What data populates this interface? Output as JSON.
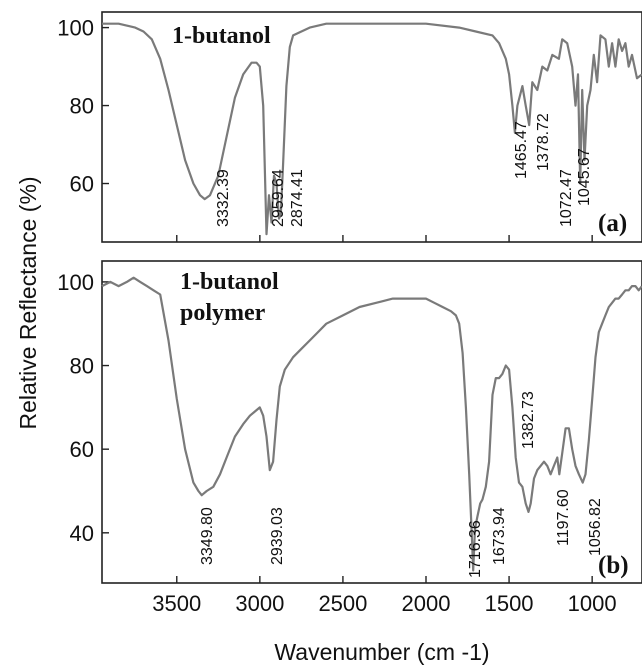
{
  "figure": {
    "ylabel": "Relative Reflectance (%)",
    "xlabel": "Wavenumber (cm -1)"
  },
  "chart_data": [
    {
      "type": "line",
      "title": "1-butanol",
      "panel_label": "(a)",
      "xlim": [
        3950,
        700
      ],
      "ylim": [
        45,
        104
      ],
      "x_ticks": [
        3500,
        3000,
        2500,
        2000,
        1500,
        1000
      ],
      "y_ticks": [
        60,
        80,
        100
      ],
      "grid": false,
      "line_color": "#7a7a7a",
      "series": [
        {
          "x": [
            3950,
            3850,
            3750,
            3700,
            3650,
            3600,
            3550,
            3500,
            3450,
            3400,
            3360,
            3332,
            3300,
            3250,
            3200,
            3150,
            3100,
            3050,
            3020,
            3000,
            2980,
            2960,
            2945,
            2930,
            2915,
            2900,
            2885,
            2874,
            2860,
            2840,
            2820,
            2800,
            2750,
            2700,
            2600,
            2400,
            2200,
            2000,
            1800,
            1700,
            1600,
            1560,
            1520,
            1500,
            1480,
            1465,
            1450,
            1420,
            1400,
            1379,
            1360,
            1330,
            1300,
            1270,
            1240,
            1200,
            1180,
            1150,
            1120,
            1100,
            1085,
            1072,
            1060,
            1046,
            1030,
            1010,
            990,
            970,
            950,
            920,
            900,
            880,
            860,
            840,
            820,
            800,
            780,
            760,
            730,
            700
          ],
          "y": [
            101,
            101,
            100,
            99,
            97,
            92,
            84,
            75,
            66,
            60,
            57,
            56,
            57,
            62,
            72,
            82,
            88,
            91,
            91,
            90,
            80,
            47,
            57,
            50,
            62,
            60,
            51,
            52,
            65,
            85,
            95,
            98,
            99,
            100,
            101,
            101,
            101,
            101,
            100,
            99,
            98,
            96,
            92,
            88,
            80,
            73,
            80,
            85,
            80,
            75,
            86,
            84,
            90,
            89,
            93,
            92,
            97,
            96,
            90,
            80,
            88,
            60,
            84,
            66,
            80,
            84,
            93,
            86,
            98,
            97,
            90,
            96,
            90,
            97,
            94,
            96,
            90,
            93,
            87,
            88
          ]
        }
      ],
      "annotations": [
        "3332.39",
        "2959.64",
        "2874.41",
        "1465.47",
        "1378.72",
        "1072.47",
        "1045.67"
      ]
    },
    {
      "type": "line",
      "title": "1-butanol polymer",
      "title_lines": [
        "1-butanol",
        "polymer"
      ],
      "panel_label": "(b)",
      "xlim": [
        3950,
        700
      ],
      "ylim": [
        28,
        105
      ],
      "x_ticks": [
        3500,
        3000,
        2500,
        2000,
        1500,
        1000
      ],
      "y_ticks": [
        40,
        60,
        80,
        100
      ],
      "grid": false,
      "line_color": "#7a7a7a",
      "series": [
        {
          "x": [
            3950,
            3900,
            3850,
            3800,
            3760,
            3720,
            3680,
            3640,
            3600,
            3550,
            3500,
            3450,
            3400,
            3370,
            3350,
            3320,
            3280,
            3240,
            3200,
            3150,
            3100,
            3060,
            3030,
            3000,
            2980,
            2960,
            2940,
            2920,
            2900,
            2880,
            2850,
            2800,
            2750,
            2700,
            2650,
            2600,
            2500,
            2400,
            2300,
            2200,
            2100,
            2000,
            1950,
            1900,
            1850,
            1820,
            1800,
            1780,
            1760,
            1740,
            1725,
            1716,
            1705,
            1690,
            1674,
            1660,
            1640,
            1620,
            1600,
            1580,
            1560,
            1540,
            1520,
            1500,
            1480,
            1460,
            1440,
            1420,
            1400,
            1383,
            1370,
            1350,
            1330,
            1310,
            1290,
            1270,
            1250,
            1230,
            1210,
            1198,
            1180,
            1160,
            1140,
            1120,
            1100,
            1080,
            1057,
            1040,
            1020,
            1000,
            980,
            960,
            940,
            920,
            900,
            880,
            860,
            840,
            820,
            800,
            780,
            760,
            740,
            720,
            700
          ],
          "y": [
            99,
            100,
            99,
            100,
            101,
            100,
            99,
            98,
            97,
            86,
            72,
            60,
            52,
            50,
            49,
            50,
            51,
            54,
            58,
            63,
            66,
            68,
            69,
            70,
            68,
            63,
            55,
            57,
            67,
            75,
            79,
            82,
            84,
            86,
            88,
            90,
            92,
            94,
            95,
            96,
            96,
            96,
            95,
            94,
            93,
            92,
            90,
            83,
            70,
            54,
            40,
            31,
            41,
            44,
            47,
            48,
            51,
            57,
            73,
            77,
            77,
            78,
            80,
            79,
            70,
            58,
            52,
            51,
            47,
            45,
            47,
            53,
            55,
            56,
            57,
            56,
            54,
            56,
            58,
            54,
            59,
            65,
            65,
            60,
            56,
            54,
            52,
            54,
            62,
            72,
            82,
            88,
            90,
            92,
            94,
            95,
            96,
            96,
            97,
            98,
            98,
            99,
            99,
            98,
            99
          ]
        }
      ],
      "annotations": [
        "3349.80",
        "2939.03",
        "1716.36",
        "1673.94",
        "1382.73",
        "1197.60",
        "1056.82"
      ]
    }
  ]
}
